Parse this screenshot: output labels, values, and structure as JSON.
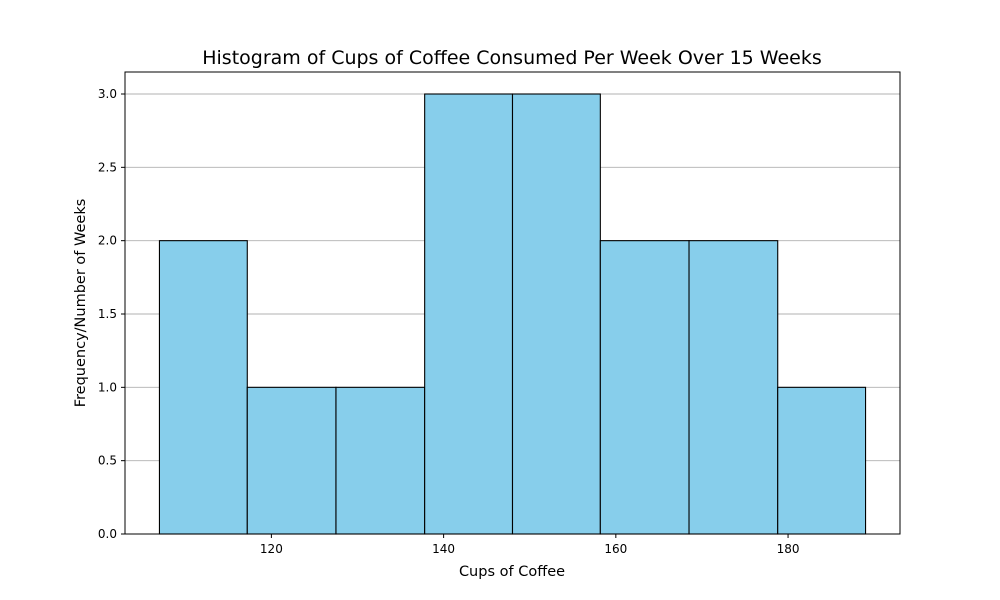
{
  "chart_data": {
    "type": "bar",
    "subtype": "histogram",
    "title": "Histogram of Cups of Coffee Consumed Per Week Over 15 Weeks",
    "xlabel": "Cups of Coffee",
    "ylabel": "Frequency/Number of Weeks",
    "bin_edges": [
      107.0,
      117.2,
      127.5,
      137.8,
      148.0,
      158.2,
      168.5,
      178.8,
      189.0
    ],
    "values": [
      2,
      1,
      1,
      3,
      3,
      2,
      2,
      1
    ],
    "xlim": [
      103,
      193
    ],
    "ylim": [
      0,
      3.15
    ],
    "xticks": [
      120,
      140,
      160,
      180
    ],
    "xtick_labels": [
      "120",
      "140",
      "160",
      "180"
    ],
    "yticks": [
      0,
      0.5,
      1,
      1.5,
      2,
      2.5,
      3
    ],
    "ytick_labels": [
      "0.0",
      "0.5",
      "1.0",
      "1.5",
      "2.0",
      "2.5",
      "3.0"
    ],
    "grid": "y",
    "legend": "none",
    "bar_color": "#87CEEB",
    "edge_color": "#000000"
  }
}
